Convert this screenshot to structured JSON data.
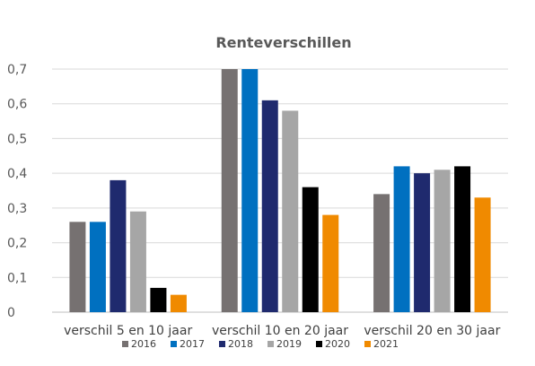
{
  "chart_data": {
    "type": "bar",
    "title": "Renteverschillen",
    "xlabel": "",
    "ylabel": "",
    "categories": [
      "verschil 5 en 10 jaar",
      "verschil 10 en 20 jaar",
      "verschil 20 en 30 jaar"
    ],
    "ylim": [
      0,
      0.7
    ],
    "yticks": [
      "0",
      "0,1",
      "0,2",
      "0,3",
      "0,4",
      "0,5",
      "0,6",
      "0,7"
    ],
    "grid": true,
    "legend_position": "bottom",
    "series": [
      {
        "name": "2016",
        "color": "#767171",
        "values": [
          0.26,
          0.7,
          0.34
        ]
      },
      {
        "name": "2017",
        "color": "#0070C0",
        "values": [
          0.26,
          0.7,
          0.42
        ]
      },
      {
        "name": "2018",
        "color": "#1F2A6E",
        "values": [
          0.38,
          0.61,
          0.4
        ]
      },
      {
        "name": "2019",
        "color": "#A6A6A6",
        "values": [
          0.29,
          0.58,
          0.41
        ]
      },
      {
        "name": "2020",
        "color": "#000000",
        "values": [
          0.07,
          0.36,
          0.42
        ]
      },
      {
        "name": "2021",
        "color": "#F08A00",
        "values": [
          0.05,
          0.28,
          0.33
        ]
      }
    ]
  }
}
